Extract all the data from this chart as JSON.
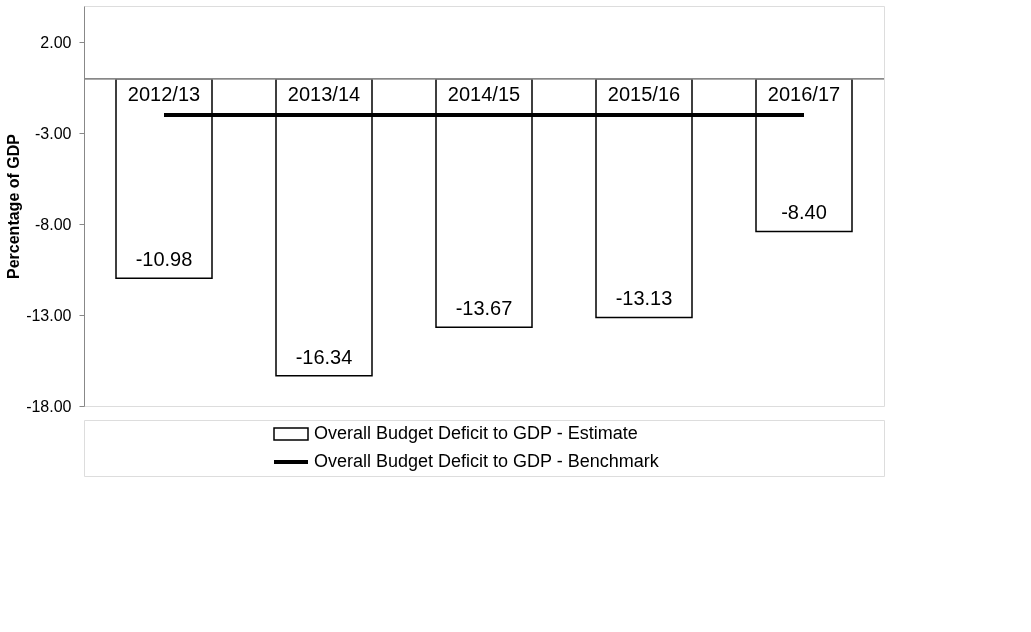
{
  "chart_data": {
    "type": "bar",
    "ylabel": "Percentage of GDP",
    "categories": [
      "2012/13",
      "2013/14",
      "2014/15",
      "2015/16",
      "2016/17"
    ],
    "series": [
      {
        "name": "Overall Budget Deficit to GDP - Estimate",
        "type": "bar",
        "color": "#ffffff",
        "values": [
          -10.98,
          -16.34,
          -13.67,
          -13.13,
          -8.4
        ],
        "value_labels": [
          "-10.98",
          "-16.34",
          "-13.67",
          "-13.13",
          "-8.40"
        ]
      },
      {
        "name": "Overall Budget Deficit to GDP - Benchmark",
        "type": "line",
        "color": "#000000",
        "values": [
          -2.0,
          -2.0,
          -2.0,
          -2.0,
          -2.0
        ]
      }
    ],
    "ylim": [
      -18,
      4
    ],
    "yticks": [
      {
        "value": 2,
        "label": "2.00"
      },
      {
        "value": -3,
        "label": "-3.00"
      },
      {
        "value": -8,
        "label": "-8.00"
      },
      {
        "value": -13,
        "label": "-13.00"
      },
      {
        "value": -18,
        "label": "-18.00"
      }
    ],
    "grid": false,
    "legend": "bottom"
  }
}
